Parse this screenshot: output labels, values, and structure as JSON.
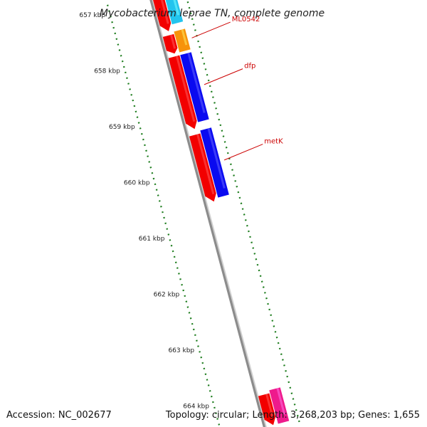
{
  "title": "Mycobacterium leprae TN, complete genome",
  "footer": {
    "accession": "Accession: NC_002677",
    "summary": "Topology: circular; Length: 3,268,203 bp; Genes: 1,655"
  },
  "colors": {
    "backbone": "#8c8c8c",
    "ticks": "#1e7d1e",
    "label": "#cc0000",
    "red": "#f20000",
    "blue": "#0a0af0",
    "cyan": "#22c4ee",
    "orange": "#f7930a",
    "pink": "#ee1a8c"
  },
  "kbp_labels": [
    {
      "kbp": 657,
      "text": "657 kbp"
    },
    {
      "kbp": 658,
      "text": "658 kbp"
    },
    {
      "kbp": 659,
      "text": "659 kbp"
    },
    {
      "kbp": 660,
      "text": "660 kbp"
    },
    {
      "kbp": 661,
      "text": "661 kbp"
    },
    {
      "kbp": 662,
      "text": "662 kbp"
    },
    {
      "kbp": 663,
      "text": "663 kbp"
    },
    {
      "kbp": 664,
      "text": "664 kbp"
    }
  ],
  "features": [
    {
      "name": "",
      "strand": "reverse",
      "start_kbp": 656.85,
      "end_kbp": 657.55,
      "color": "red"
    },
    {
      "name": "",
      "strand": "forward",
      "start_kbp": 656.85,
      "end_kbp": 657.45,
      "color": "cyan"
    },
    {
      "name": "",
      "strand": "reverse",
      "start_kbp": 657.62,
      "end_kbp": 657.95,
      "color": "red"
    },
    {
      "name": "ML0542",
      "strand": "forward",
      "start_kbp": 657.58,
      "end_kbp": 657.95,
      "color": "orange"
    },
    {
      "name": "",
      "strand": "reverse",
      "start_kbp": 658.0,
      "end_kbp": 659.3,
      "color": "red"
    },
    {
      "name": "dfp",
      "strand": "forward",
      "start_kbp": 658.0,
      "end_kbp": 659.2,
      "color": "blue"
    },
    {
      "name": "",
      "strand": "reverse",
      "start_kbp": 659.4,
      "end_kbp": 660.6,
      "color": "red"
    },
    {
      "name": "metK",
      "strand": "forward",
      "start_kbp": 659.35,
      "end_kbp": 660.55,
      "color": "blue"
    },
    {
      "name": "",
      "strand": "reverse",
      "start_kbp": 664.05,
      "end_kbp": 664.6,
      "color": "red"
    },
    {
      "name": "",
      "strand": "forward",
      "start_kbp": 664.0,
      "end_kbp": 664.6,
      "color": "pink"
    }
  ]
}
